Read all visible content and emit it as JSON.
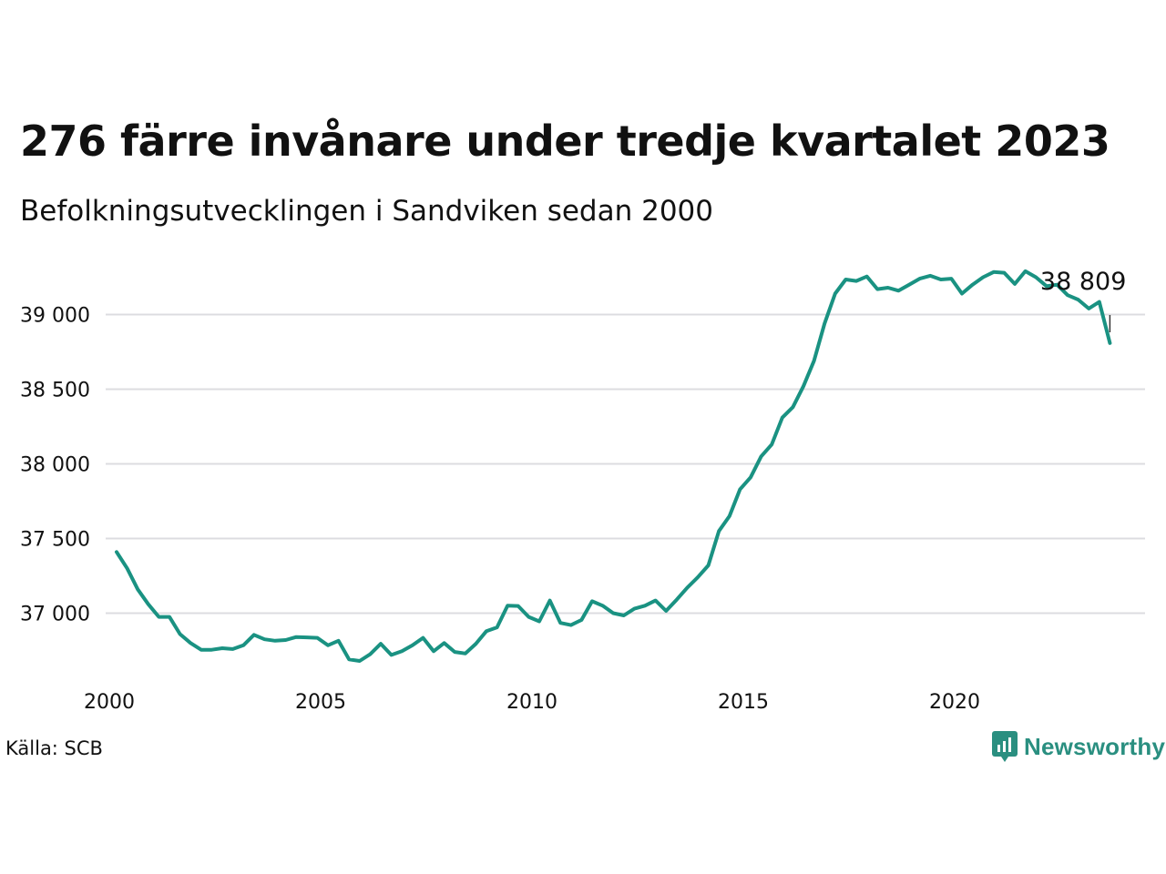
{
  "header": {
    "title": "276 färre invånare under tredje kvartalet 2023",
    "subtitle": "Befolkningsutvecklingen i Sandviken sedan 2000"
  },
  "footer": {
    "source": "Källa: SCB",
    "brand": "Newsworthy"
  },
  "colors": {
    "line": "#1a9282",
    "grid": "#dcdce0",
    "brand": "#2a8f80",
    "text": "#111111"
  },
  "icons": {
    "brand_logo": "newsworthy-chart-bubble-icon"
  },
  "chart_data": {
    "type": "line",
    "title": "276 färre invånare under tredje kvartalet 2023",
    "subtitle": "Befolkningsutvecklingen i Sandviken sedan 2000",
    "xlabel": "",
    "ylabel": "",
    "xlim": [
      2000,
      2024.2
    ],
    "ylim": [
      36550,
      39350
    ],
    "x_ticks": [
      2000,
      2005,
      2010,
      2015,
      2020
    ],
    "y_ticks": [
      37000,
      37500,
      38000,
      38500,
      39000
    ],
    "y_tick_labels": [
      "37 000",
      "37 500",
      "38 000",
      "38 500",
      "39 000"
    ],
    "grid": "horizontal",
    "legend": "none",
    "annotation": {
      "text": "38 809",
      "x": 2023.5,
      "y": 38809
    },
    "series": [
      {
        "x": [
          2000.0,
          2000.25,
          2000.5,
          2000.75,
          2001.0,
          2001.25,
          2001.5,
          2001.75,
          2002.0,
          2002.25,
          2002.5,
          2002.75,
          2003.0,
          2003.25,
          2003.5,
          2003.75,
          2004.0,
          2004.25,
          2004.5,
          2004.75,
          2005.0,
          2005.25,
          2005.5,
          2005.75,
          2006.0,
          2006.25,
          2006.5,
          2006.75,
          2007.0,
          2007.25,
          2007.5,
          2007.75,
          2008.0,
          2008.25,
          2008.5,
          2008.75,
          2009.0,
          2009.25,
          2009.5,
          2009.75,
          2010.0,
          2010.25,
          2010.5,
          2010.75,
          2011.0,
          2011.25,
          2011.5,
          2011.75,
          2012.0,
          2012.25,
          2012.5,
          2012.75,
          2013.0,
          2013.25,
          2013.5,
          2013.75,
          2014.0,
          2014.25,
          2014.5,
          2014.75,
          2015.0,
          2015.25,
          2015.5,
          2015.75,
          2016.0,
          2016.25,
          2016.5,
          2016.75,
          2017.0,
          2017.25,
          2017.5,
          2017.75,
          2018.0,
          2018.25,
          2018.5,
          2018.75,
          2019.0,
          2019.25,
          2019.5,
          2019.75,
          2020.0,
          2020.25,
          2020.5,
          2020.75,
          2021.0,
          2021.25,
          2021.5,
          2021.75,
          2022.0,
          2022.25,
          2022.5,
          2022.75,
          2023.0,
          2023.25,
          2023.5
        ],
        "values": [
          37410,
          37300,
          37160,
          37060,
          36975,
          36975,
          36860,
          36800,
          36755,
          36755,
          36765,
          36760,
          36785,
          36855,
          36825,
          36815,
          36820,
          36840,
          36838,
          36835,
          36785,
          36815,
          36690,
          36680,
          36725,
          36795,
          36720,
          36745,
          36785,
          36835,
          36745,
          36800,
          36740,
          36730,
          36795,
          36880,
          36905,
          37050,
          37048,
          36975,
          36945,
          37085,
          36935,
          36920,
          36955,
          37080,
          37050,
          37000,
          36985,
          37030,
          37050,
          37085,
          37015,
          37090,
          37170,
          37240,
          37320,
          37550,
          37650,
          37830,
          37910,
          38050,
          38130,
          38310,
          38380,
          38520,
          38690,
          38940,
          39140,
          39235,
          39225,
          39255,
          39170,
          39180,
          39160,
          39200,
          39240,
          39260,
          39235,
          39240,
          39140,
          39200,
          39250,
          39285,
          39280,
          39205,
          39290,
          39250,
          39190,
          39200,
          39130,
          39100,
          39040,
          39085,
          38809
        ]
      }
    ]
  }
}
